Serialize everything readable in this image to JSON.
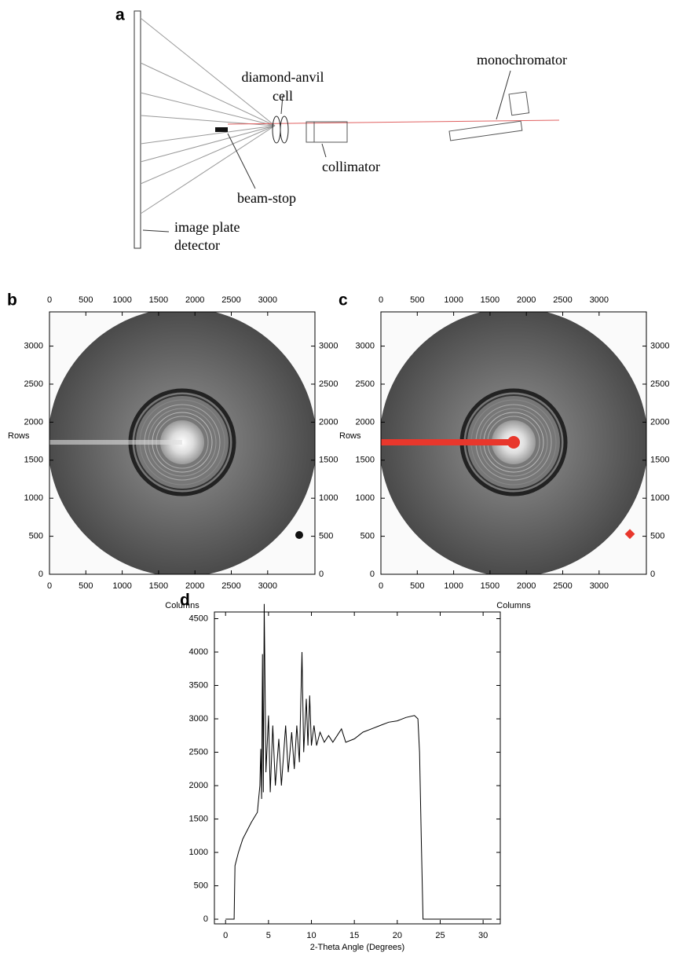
{
  "diagram": {
    "panel": "a",
    "labels": [
      "diamond-anvil",
      "cell",
      "monochromator",
      "collimator",
      "beam-stop",
      "image plate",
      "detector"
    ]
  },
  "chart_data": [
    {
      "type": "image",
      "panel": "b",
      "xlabel": "Columns",
      "ylabel": "Rows",
      "xlim": [
        0,
        3650
      ],
      "ylim": [
        0,
        3450
      ],
      "xticks": [
        0,
        500,
        1000,
        1500,
        2000,
        2500,
        3000
      ],
      "yticks": [
        0,
        500,
        1000,
        1500,
        2000,
        2500,
        3000
      ]
    },
    {
      "type": "image",
      "panel": "c",
      "xlabel": "Columns",
      "ylabel": "Rows",
      "xlim": [
        0,
        3650
      ],
      "ylim": [
        0,
        3450
      ],
      "xticks": [
        0,
        500,
        1000,
        1500,
        2000,
        2500,
        3000
      ],
      "yticks": [
        0,
        500,
        1000,
        1500,
        2000,
        2500,
        3000
      ]
    },
    {
      "type": "line",
      "panel": "d",
      "xlabel": "2-Theta Angle (Degrees)",
      "xlim": [
        -1.3,
        32
      ],
      "ylim": [
        -70,
        4600
      ],
      "xticks": [
        0,
        5,
        10,
        15,
        20,
        25,
        30
      ],
      "yticks": [
        0,
        500,
        1000,
        1500,
        2000,
        2500,
        3000,
        3500,
        4000,
        4500
      ],
      "series": [
        {
          "color": "#000000",
          "x": [
            0,
            1,
            1.1,
            1.5,
            2,
            3,
            3.7,
            4,
            4.1,
            4.2,
            4.3,
            4.4,
            4.5,
            4.6,
            4.7,
            5,
            5.2,
            5.5,
            5.8,
            6.2,
            6.5,
            7,
            7.3,
            7.7,
            8,
            8.3,
            8.6,
            8.9,
            9.1,
            9.4,
            9.6,
            9.8,
            10,
            10.3,
            10.6,
            11,
            11.5,
            12,
            12.5,
            13,
            13.5,
            14,
            15,
            16,
            17,
            18,
            19,
            20,
            21,
            22,
            22.4,
            22.6,
            22.8,
            23,
            31
          ],
          "values": [
            0,
            0,
            800,
            1000,
            1200,
            1450,
            1600,
            2000,
            2550,
            1800,
            3970,
            1900,
            4720,
            3500,
            2200,
            3050,
            1900,
            2900,
            2000,
            2700,
            2000,
            2900,
            2200,
            2800,
            2250,
            2900,
            2350,
            4000,
            2500,
            3300,
            2600,
            3350,
            2600,
            2900,
            2600,
            2800,
            2650,
            2750,
            2650,
            2750,
            2850,
            2650,
            2700,
            2800,
            2850,
            2900,
            2950,
            2970,
            3020,
            3050,
            3000,
            2500,
            1200,
            0,
            0
          ]
        }
      ]
    }
  ]
}
